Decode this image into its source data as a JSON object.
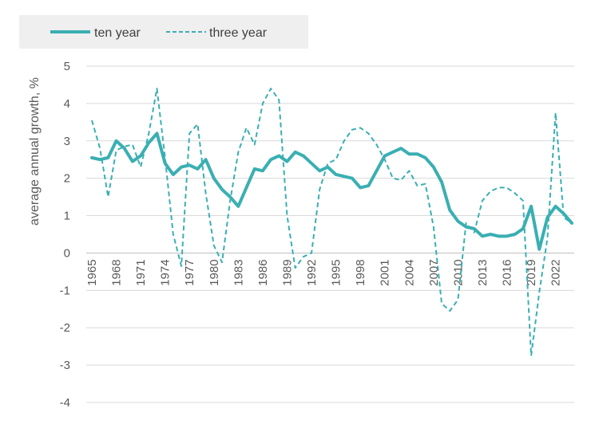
{
  "chart_data": {
    "type": "line",
    "title": "",
    "xlabel": "",
    "ylabel": "average annual growth, %",
    "ylim": [
      -4,
      5
    ],
    "yticks": [
      5,
      4,
      3,
      2,
      1,
      0,
      -1,
      -2,
      -3,
      -4
    ],
    "grid": "horizontal",
    "legend_position": "top-left",
    "x": [
      1965,
      1966,
      1967,
      1968,
      1969,
      1970,
      1971,
      1972,
      1973,
      1974,
      1975,
      1976,
      1977,
      1978,
      1979,
      1980,
      1981,
      1982,
      1983,
      1984,
      1985,
      1986,
      1987,
      1988,
      1989,
      1990,
      1991,
      1992,
      1993,
      1994,
      1995,
      1996,
      1997,
      1998,
      1999,
      2000,
      2001,
      2002,
      2003,
      2004,
      2005,
      2006,
      2007,
      2008,
      2009,
      2010,
      2011,
      2012,
      2013,
      2014,
      2015,
      2016,
      2017,
      2018,
      2019,
      2020,
      2021,
      2022,
      2023,
      2024
    ],
    "xtick_labels": [
      "1965",
      "1968",
      "1971",
      "1974",
      "1977",
      "1980",
      "1983",
      "1986",
      "1989",
      "1992",
      "1995",
      "1998",
      "2001",
      "2004",
      "2007",
      "2010",
      "2013",
      "2016",
      "2019",
      "2022"
    ],
    "series": [
      {
        "name": "ten year",
        "style": "solid",
        "color": "#3aafb2",
        "values": [
          2.55,
          2.5,
          2.55,
          3.0,
          2.8,
          2.45,
          2.6,
          2.95,
          3.2,
          2.4,
          2.1,
          2.3,
          2.35,
          2.25,
          2.5,
          2.0,
          1.7,
          1.5,
          1.25,
          1.75,
          2.25,
          2.2,
          2.5,
          2.6,
          2.45,
          2.7,
          2.6,
          2.4,
          2.2,
          2.3,
          2.1,
          2.05,
          2.0,
          1.75,
          1.8,
          2.2,
          2.6,
          2.7,
          2.8,
          2.65,
          2.65,
          2.55,
          2.3,
          1.9,
          1.15,
          0.85,
          0.7,
          0.65,
          0.45,
          0.5,
          0.45,
          0.45,
          0.5,
          0.65,
          1.25,
          0.1,
          0.95,
          1.25,
          1.05,
          0.8
        ]
      },
      {
        "name": "three year",
        "style": "dashed",
        "color": "#3aafb2",
        "values": [
          3.55,
          2.8,
          1.5,
          2.75,
          2.85,
          2.9,
          2.3,
          3.2,
          4.4,
          2.55,
          0.5,
          -0.35,
          3.2,
          3.45,
          1.6,
          0.2,
          -0.25,
          1.4,
          2.7,
          3.35,
          2.9,
          4.0,
          4.4,
          4.1,
          1.0,
          -0.4,
          -0.1,
          0.0,
          1.7,
          2.4,
          2.5,
          3.0,
          3.3,
          3.35,
          3.2,
          2.9,
          2.5,
          2.0,
          1.95,
          2.2,
          1.8,
          1.85,
          0.7,
          -1.35,
          -1.55,
          -1.25,
          0.8,
          0.55,
          1.4,
          1.65,
          1.75,
          1.75,
          1.6,
          1.4,
          -2.75,
          -1.05,
          0.4,
          3.75,
          0.95,
          0.8
        ]
      }
    ]
  }
}
